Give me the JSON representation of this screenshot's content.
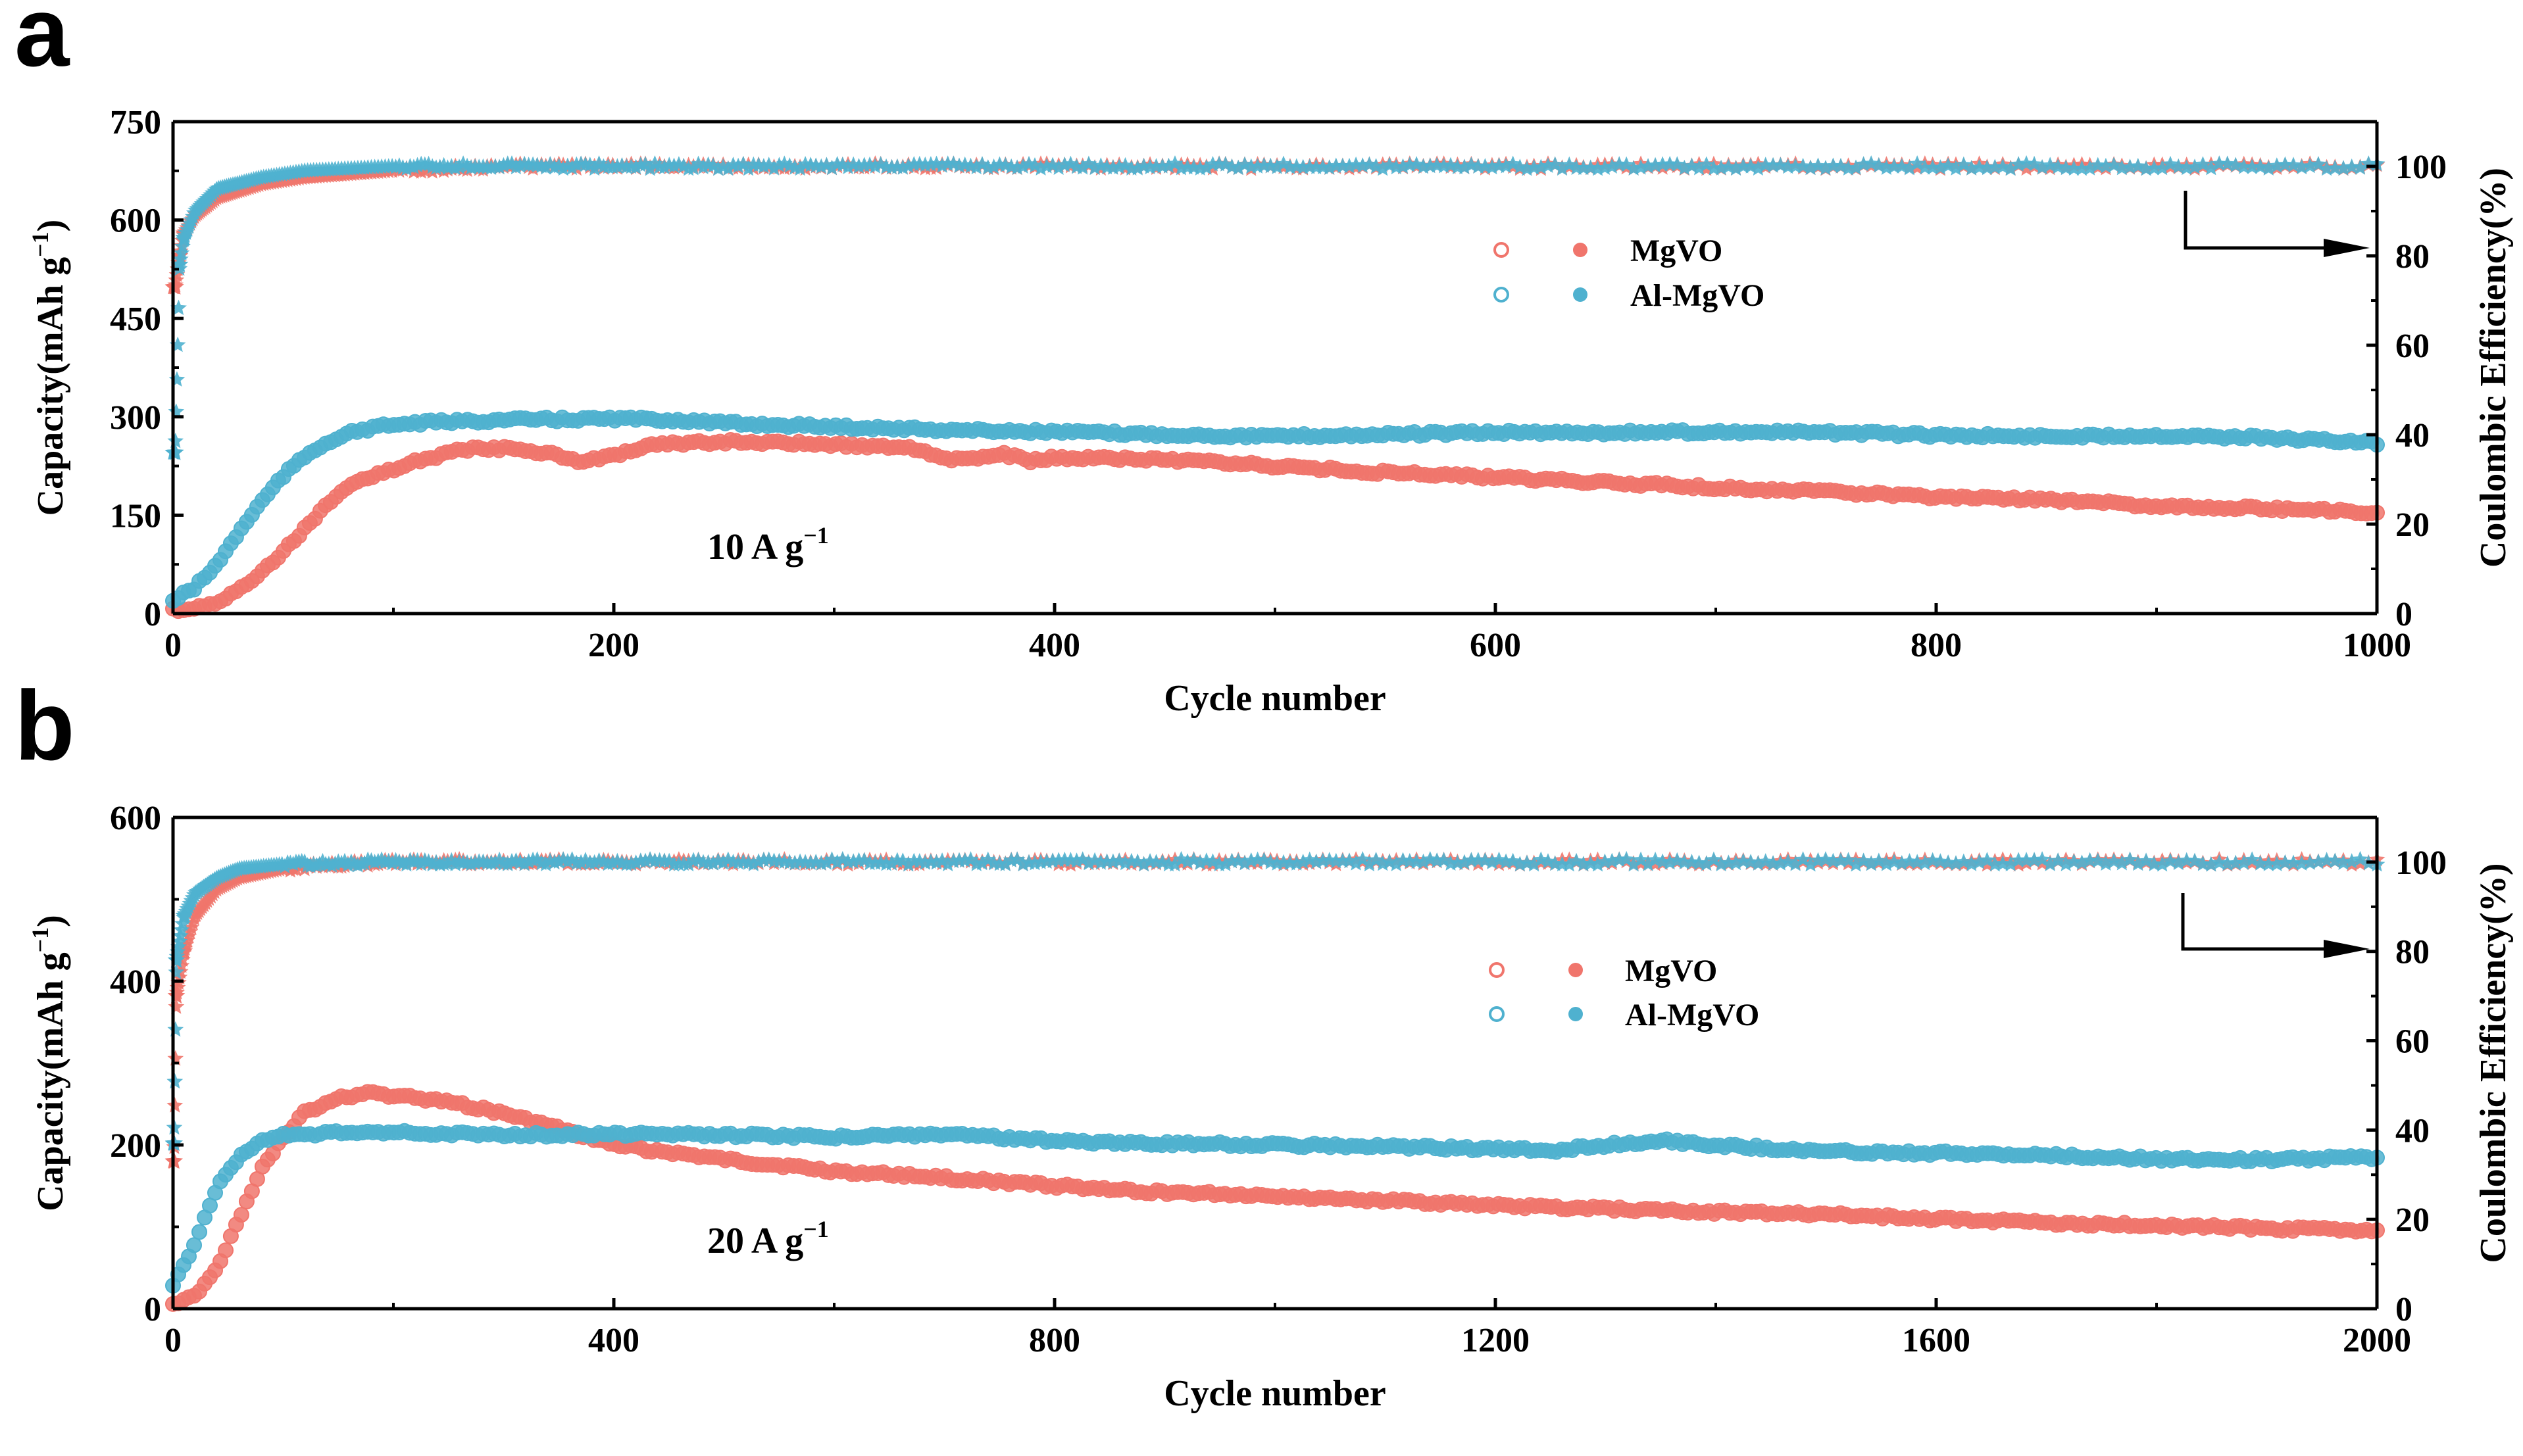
{
  "colors": {
    "mgvo": "#f0756c",
    "almgvo": "#4fb1cf",
    "axis": "#000000"
  },
  "chart_data": [
    {
      "panel_label": "a",
      "type": "scatter",
      "xlabel": "Cycle number",
      "ylabel": "Capacity(mAh g",
      "ylabel_unit_sup": "−1",
      "ylabel_suffix": ")",
      "y2label": "Coulombic Efficiency(%)",
      "xlim": [
        0,
        1000
      ],
      "ylim": [
        0,
        750
      ],
      "y2lim": [
        0,
        110
      ],
      "xticks": [
        0,
        200,
        400,
        600,
        800,
        1000
      ],
      "yticks": [
        0,
        150,
        300,
        450,
        600,
        750
      ],
      "y2ticks": [
        0,
        20,
        40,
        60,
        80,
        100
      ],
      "annotation": "10 A g",
      "annotation_sup": "−1",
      "arrow_direction": "right",
      "legend": [
        "MgVO",
        "Al-MgVO"
      ],
      "series": [
        {
          "name": "MgVO",
          "metric": "capacity",
          "axis": "left",
          "color": "#f0756c",
          "points": [
            [
              0,
              5
            ],
            [
              10,
              8
            ],
            [
              20,
              18
            ],
            [
              30,
              35
            ],
            [
              40,
              62
            ],
            [
              50,
              95
            ],
            [
              60,
              130
            ],
            [
              70,
              165
            ],
            [
              80,
              195
            ],
            [
              90,
              210
            ],
            [
              100,
              220
            ],
            [
              110,
              232
            ],
            [
              120,
              240
            ],
            [
              130,
              250
            ],
            [
              150,
              252
            ],
            [
              170,
              245
            ],
            [
              185,
              232
            ],
            [
              200,
              240
            ],
            [
              220,
              258
            ],
            [
              250,
              262
            ],
            [
              300,
              258
            ],
            [
              340,
              250
            ],
            [
              350,
              236
            ],
            [
              365,
              235
            ],
            [
              375,
              245
            ],
            [
              390,
              232
            ],
            [
              400,
              238
            ],
            [
              450,
              235
            ],
            [
              500,
              225
            ],
            [
              550,
              215
            ],
            [
              600,
              208
            ],
            [
              650,
              200
            ],
            [
              700,
              192
            ],
            [
              750,
              186
            ],
            [
              800,
              178
            ],
            [
              850,
              174
            ],
            [
              900,
              164
            ],
            [
              950,
              160
            ],
            [
              1000,
              155
            ]
          ]
        },
        {
          "name": "Al-MgVO",
          "metric": "capacity",
          "axis": "left",
          "color": "#4fb1cf",
          "points": [
            [
              0,
              20
            ],
            [
              10,
              40
            ],
            [
              20,
              75
            ],
            [
              30,
              125
            ],
            [
              40,
              170
            ],
            [
              50,
              210
            ],
            [
              60,
              240
            ],
            [
              70,
              262
            ],
            [
              80,
              275
            ],
            [
              90,
              283
            ],
            [
              100,
              288
            ],
            [
              120,
              292
            ],
            [
              150,
              295
            ],
            [
              200,
              297
            ],
            [
              230,
              295
            ],
            [
              250,
              290
            ],
            [
              300,
              285
            ],
            [
              350,
              280
            ],
            [
              400,
              277
            ],
            [
              450,
              273
            ],
            [
              500,
              270
            ],
            [
              550,
              273
            ],
            [
              600,
              276
            ],
            [
              650,
              276
            ],
            [
              700,
              277
            ],
            [
              750,
              276
            ],
            [
              800,
              272
            ],
            [
              850,
              270
            ],
            [
              900,
              272
            ],
            [
              950,
              268
            ],
            [
              1000,
              260
            ]
          ]
        },
        {
          "name": "MgVO",
          "metric": "coulombic_efficiency",
          "axis": "right",
          "color": "#f0756c",
          "points": [
            [
              1,
              73
            ],
            [
              3,
              80
            ],
            [
              5,
              85
            ],
            [
              10,
              89
            ],
            [
              20,
              93
            ],
            [
              40,
              96
            ],
            [
              60,
              97.5
            ],
            [
              100,
              99
            ],
            [
              150,
              100
            ],
            [
              200,
              100
            ],
            [
              400,
              100
            ],
            [
              600,
              100
            ],
            [
              800,
              100
            ],
            [
              1000,
              100
            ]
          ]
        },
        {
          "name": "Al-MgVO",
          "metric": "coulombic_efficiency",
          "axis": "right",
          "color": "#4fb1cf",
          "points": [
            [
              1,
              36
            ],
            [
              3,
              78
            ],
            [
              5,
              84
            ],
            [
              10,
              90
            ],
            [
              20,
              95
            ],
            [
              40,
              97.5
            ],
            [
              60,
              99
            ],
            [
              100,
              100
            ],
            [
              200,
              100
            ],
            [
              400,
              100
            ],
            [
              600,
              100
            ],
            [
              800,
              100
            ],
            [
              1000,
              100
            ]
          ]
        }
      ]
    },
    {
      "panel_label": "b",
      "type": "scatter",
      "xlabel": "Cycle number",
      "ylabel": "Capacity(mAh g",
      "ylabel_unit_sup": "−1",
      "ylabel_suffix": ")",
      "y2label": "Coulombic Efficiency(%)",
      "xlim": [
        0,
        2000
      ],
      "ylim": [
        0,
        600
      ],
      "y2lim": [
        0,
        110
      ],
      "xticks": [
        0,
        400,
        800,
        1200,
        1600,
        2000
      ],
      "yticks": [
        0,
        200,
        400,
        600
      ],
      "y2ticks": [
        0,
        20,
        40,
        60,
        80,
        100
      ],
      "annotation": "20 A g",
      "annotation_sup": "−1",
      "arrow_direction": "right",
      "legend": [
        "MgVO",
        "Al-MgVO"
      ],
      "series": [
        {
          "name": "MgVO",
          "metric": "capacity",
          "axis": "left",
          "color": "#f0756c",
          "points": [
            [
              0,
              5
            ],
            [
              20,
              15
            ],
            [
              40,
              50
            ],
            [
              60,
              110
            ],
            [
              80,
              170
            ],
            [
              100,
              210
            ],
            [
              120,
              240
            ],
            [
              150,
              258
            ],
            [
              180,
              263
            ],
            [
              220,
              258
            ],
            [
              260,
              250
            ],
            [
              300,
              238
            ],
            [
              350,
              220
            ],
            [
              400,
              200
            ],
            [
              500,
              182
            ],
            [
              600,
              168
            ],
            [
              700,
              160
            ],
            [
              800,
              150
            ],
            [
              900,
              142
            ],
            [
              1000,
              138
            ],
            [
              1100,
              132
            ],
            [
              1200,
              126
            ],
            [
              1300,
              122
            ],
            [
              1400,
              118
            ],
            [
              1500,
              115
            ],
            [
              1600,
              110
            ],
            [
              1700,
              105
            ],
            [
              1800,
              102
            ],
            [
              1900,
              98
            ],
            [
              2000,
              95
            ]
          ]
        },
        {
          "name": "Al-MgVO",
          "metric": "capacity",
          "axis": "left",
          "color": "#4fb1cf",
          "points": [
            [
              0,
              30
            ],
            [
              20,
              80
            ],
            [
              40,
              150
            ],
            [
              60,
              185
            ],
            [
              80,
              205
            ],
            [
              100,
              212
            ],
            [
              150,
              215
            ],
            [
              200,
              215
            ],
            [
              300,
              212
            ],
            [
              400,
              213
            ],
            [
              500,
              212
            ],
            [
              600,
              210
            ],
            [
              700,
              213
            ],
            [
              800,
              205
            ],
            [
              900,
              202
            ],
            [
              1000,
              200
            ],
            [
              1100,
              198
            ],
            [
              1200,
              195
            ],
            [
              1250,
              193
            ],
            [
              1300,
              200
            ],
            [
              1350,
              205
            ],
            [
              1400,
              200
            ],
            [
              1500,
              192
            ],
            [
              1600,
              190
            ],
            [
              1700,
              187
            ],
            [
              1800,
              183
            ],
            [
              1900,
              182
            ],
            [
              2000,
              185
            ]
          ]
        },
        {
          "name": "MgVO",
          "metric": "coulombic_efficiency",
          "axis": "right",
          "color": "#f0756c",
          "points": [
            [
              1,
              33
            ],
            [
              3,
              70
            ],
            [
              10,
              80
            ],
            [
              20,
              88
            ],
            [
              40,
              94
            ],
            [
              60,
              96.5
            ],
            [
              100,
              98.5
            ],
            [
              150,
              99.5
            ],
            [
              200,
              100
            ],
            [
              400,
              100
            ],
            [
              800,
              100
            ],
            [
              1200,
              100
            ],
            [
              1600,
              100
            ],
            [
              2000,
              100
            ]
          ]
        },
        {
          "name": "Al-MgVO",
          "metric": "coulombic_efficiency",
          "axis": "right",
          "color": "#4fb1cf",
          "points": [
            [
              1,
              37
            ],
            [
              3,
              78
            ],
            [
              10,
              88
            ],
            [
              20,
              93
            ],
            [
              40,
              96.5
            ],
            [
              60,
              98.5
            ],
            [
              100,
              99.5
            ],
            [
              200,
              100
            ],
            [
              400,
              100
            ],
            [
              800,
              100
            ],
            [
              1200,
              100
            ],
            [
              1600,
              100
            ],
            [
              2000,
              100
            ]
          ]
        }
      ]
    }
  ]
}
